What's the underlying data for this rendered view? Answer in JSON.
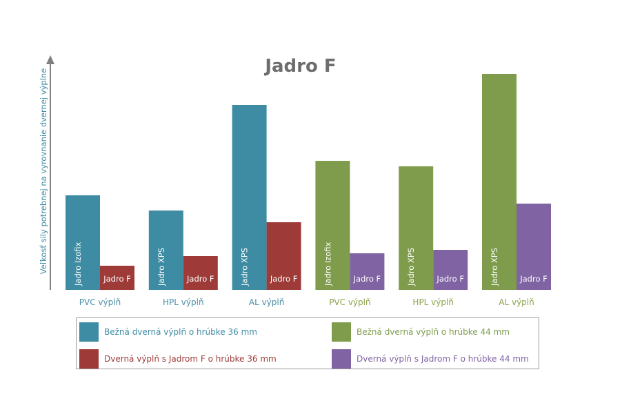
{
  "chart_data": {
    "type": "bar",
    "title": "Jadro F",
    "ylabel": "Veľkosť sily potrebnej na vyrovnanie dvernej výplne",
    "xlabel": "",
    "ylim": [
      0,
      320
    ],
    "groups": [
      {
        "category": "PVC výplň",
        "category_color": "#4a8fa6",
        "bars": [
          {
            "label": "Jadro Izofix",
            "value": 137,
            "series": 0
          },
          {
            "label": "Jadro F",
            "value": 35,
            "series": 1
          }
        ]
      },
      {
        "category": "HPL výplň",
        "category_color": "#4a8fa6",
        "bars": [
          {
            "label": "Jadro XPS",
            "value": 115,
            "series": 0
          },
          {
            "label": "Jadro F",
            "value": 49,
            "series": 1
          }
        ]
      },
      {
        "category": "AL výplň",
        "category_color": "#4a8fa6",
        "bars": [
          {
            "label": "Jadro XPS",
            "value": 268,
            "series": 0
          },
          {
            "label": "Jadro F",
            "value": 98,
            "series": 1
          }
        ]
      },
      {
        "category": "PVC výplň",
        "category_color": "#8aa34a",
        "bars": [
          {
            "label": "Jadro Izofix",
            "value": 187,
            "series": 2
          },
          {
            "label": "Jadro F",
            "value": 53,
            "series": 3
          }
        ]
      },
      {
        "category": "HPL výplň",
        "category_color": "#8aa34a",
        "bars": [
          {
            "label": "Jadro XPS",
            "value": 179,
            "series": 2
          },
          {
            "label": "Jadro F",
            "value": 58,
            "series": 3
          }
        ]
      },
      {
        "category": "AL výplň",
        "category_color": "#8aa34a",
        "bars": [
          {
            "label": "Jadro XPS",
            "value": 313,
            "series": 2
          },
          {
            "label": "Jadro F",
            "value": 125,
            "series": 3
          }
        ]
      }
    ],
    "series": [
      {
        "name": "Bežná dverná výplň o hrúbke 36 mm",
        "color": "#3d8ca3",
        "text_color": "#3d8ca3"
      },
      {
        "name": "Dverná výplň s Jadrom F o hrúbke 36 mm",
        "color": "#9e3b38",
        "text_color": "#9e3b38"
      },
      {
        "name": "Bežná dverná výplň o hrúbke 44 mm",
        "color": "#7e9c4b",
        "text_color": "#7e9c4b"
      },
      {
        "name": "Dverná výplň s Jadrom F o hrúbke 44 mm",
        "color": "#7f63a2",
        "text_color": "#7f63a2"
      }
    ],
    "grid": false,
    "legend_position": "bottom"
  }
}
